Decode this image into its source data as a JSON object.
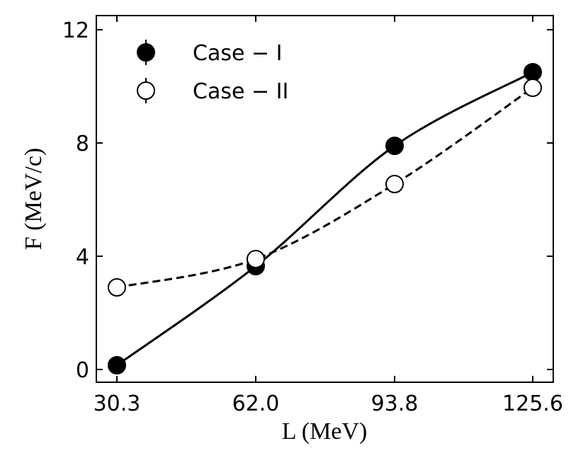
{
  "chart_data": {
    "type": "scatter",
    "xlabel": "L (MeV)",
    "ylabel": "F (MeV/c)",
    "xlim": [
      30.3,
      125.6
    ],
    "ylim": [
      0,
      12
    ],
    "x_ticks": [
      "30.3",
      "62.0",
      "93.8",
      "125.6"
    ],
    "y_ticks": [
      "0",
      "4",
      "8",
      "12"
    ],
    "grid": false,
    "legend_position": "top-left",
    "series": [
      {
        "name": "Case − I",
        "marker": "filled-circle",
        "line": "solid",
        "color": "#000000",
        "x": [
          30.3,
          62.0,
          93.8,
          125.6
        ],
        "y": [
          0.15,
          3.65,
          7.9,
          10.5
        ]
      },
      {
        "name": "Case − II",
        "marker": "open-circle",
        "line": "dashed",
        "color": "#000000",
        "x": [
          30.3,
          62.0,
          93.8,
          125.6
        ],
        "y": [
          2.9,
          3.9,
          6.55,
          9.95
        ]
      }
    ]
  }
}
